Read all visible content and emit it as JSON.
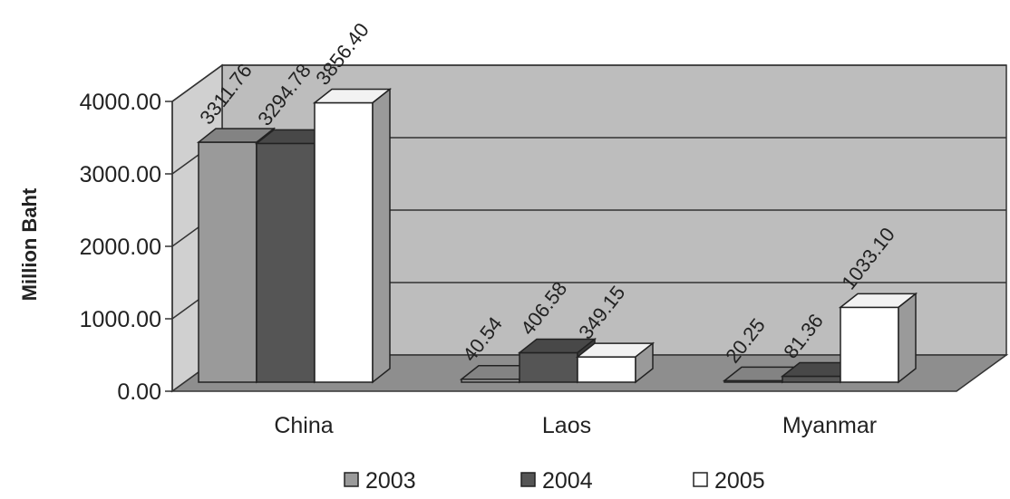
{
  "chart_data": {
    "type": "bar",
    "title": "",
    "xlabel": "",
    "ylabel": "Million Baht",
    "categories": [
      "China",
      "Laos",
      "Myanmar"
    ],
    "series": [
      {
        "name": "2003",
        "values": [
          3311.76,
          40.54,
          20.25
        ],
        "value_labels": [
          "3311.76",
          "40.54",
          "20.25"
        ],
        "color": "#9a9a9a"
      },
      {
        "name": "2004",
        "values": [
          3294.78,
          406.58,
          81.36
        ],
        "value_labels": [
          "3294.78",
          "406.58",
          "81.36"
        ],
        "color": "#555555"
      },
      {
        "name": "2005",
        "values": [
          3856.4,
          349.15,
          1033.1
        ],
        "value_labels": [
          "3856.40",
          "349.15",
          "1033.10"
        ],
        "color": "#ffffff"
      }
    ],
    "yticks": [
      "0.00",
      "1000.00",
      "2000.00",
      "3000.00",
      "4000.00"
    ],
    "ylim": [
      0,
      4000
    ],
    "grid": true,
    "legend": "bottom",
    "style": "3d",
    "wall_color": "#bdbdbd",
    "floor_color": "#8e8e8e"
  }
}
